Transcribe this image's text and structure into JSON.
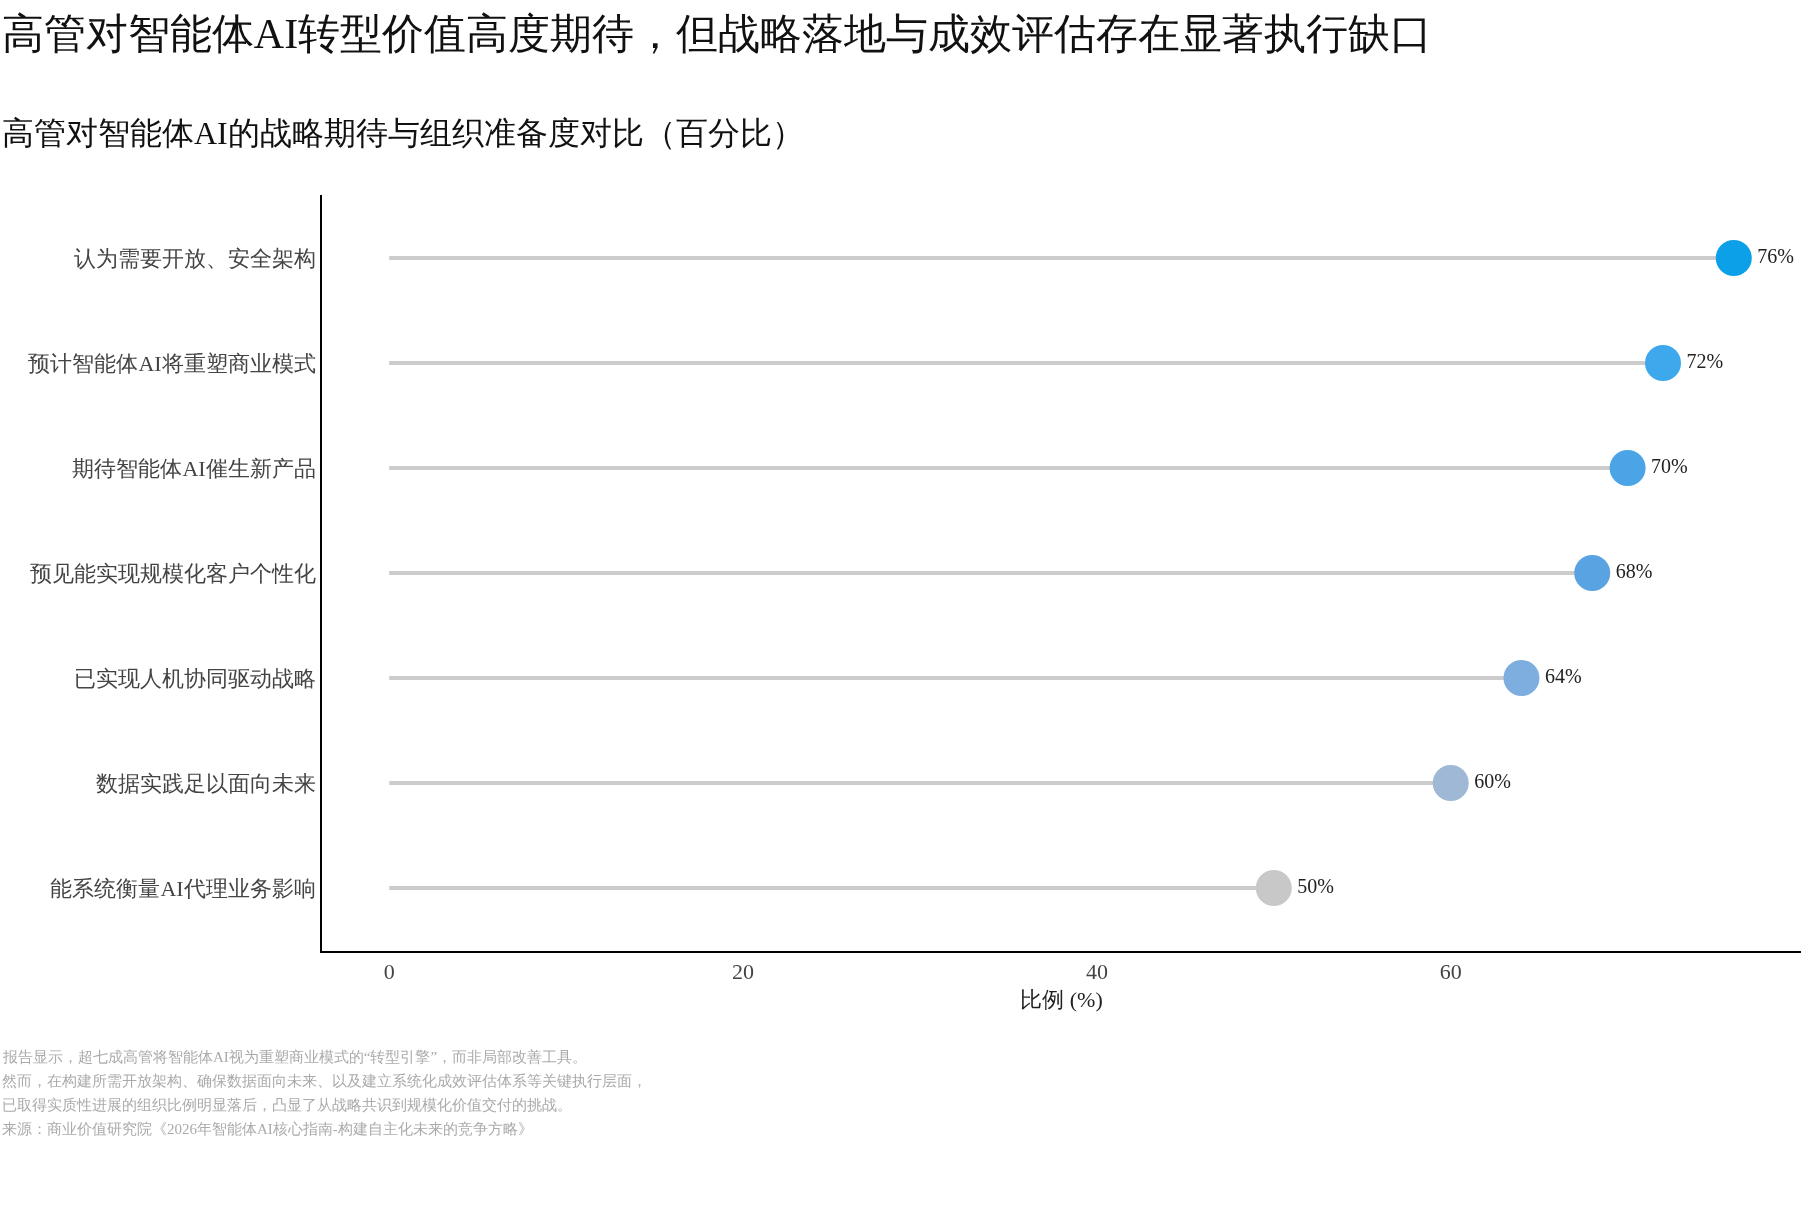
{
  "chart_data": {
    "type": "lollipop",
    "orientation": "horizontal",
    "title": "高管对智能体AI转型价值高度期待，但战略落地与成效评估存在显著执行缺口",
    "subtitle": "高管对智能体AI的战略期待与组织准备度对比（百分比）",
    "xlabel": "比例 (%)",
    "categories": [
      "认为需要开放、安全架构",
      "预计智能体AI将重塑商业模式",
      "期待智能体AI催生新产品",
      "预见能实现规模化客户个性化",
      "已实现人机协同驱动战略",
      "数据实践足以面向未来",
      "能系统衡量AI代理业务影响"
    ],
    "values": [
      76,
      72,
      70,
      68,
      64,
      60,
      50
    ],
    "colors": [
      "#0ba0e8",
      "#3ea8ec",
      "#4aa4e6",
      "#5aa3e2",
      "#7daedf",
      "#9fb8d6",
      "#c8c8c8"
    ],
    "value_labels": [
      "76%",
      "72%",
      "70%",
      "68%",
      "64%",
      "60%",
      "50%"
    ],
    "xlim": [
      -3.8,
      79.8
    ],
    "xticks": [
      0,
      20,
      40,
      60
    ],
    "marker": "circle",
    "annotations": [
      "报告显示，超七成高管将智能体AI视为重塑商业模式的“转型引擎”，而非局部改善工具。",
      "然而，在构建所需开放架构、确保数据面向未来、以及建立系统化成效评估体系等关键执行层面，",
      "已取得实质性进展的组织比例明显落后，凸显了从战略共识到规模化价值交付的挑战。",
      "来源：商业价值研究院《2026年智能体AI核心指南-构建自主化未来的竞争方略》"
    ]
  }
}
